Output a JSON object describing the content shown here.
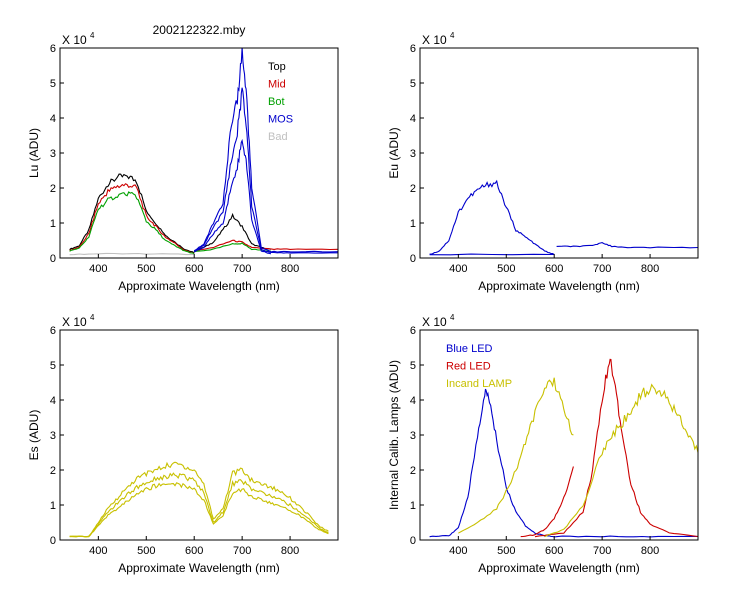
{
  "chart_data": [
    {
      "id": "lu",
      "type": "line",
      "title": "2002122322.mby",
      "xlabel": "Approximate Wavelength (nm)",
      "ylabel": "Lu (ADU)",
      "exponent_label": "X 10",
      "exponent_power": "4",
      "xlim": [
        320,
        900
      ],
      "ylim": [
        0,
        6
      ],
      "xticks": [
        400,
        500,
        600,
        700,
        800
      ],
      "yticks": [
        0,
        1,
        2,
        3,
        4,
        5,
        6
      ],
      "legend": [
        {
          "label": "Top",
          "color": "#000000"
        },
        {
          "label": "Mid",
          "color": "#cc0000"
        },
        {
          "label": "Bot",
          "color": "#00a000"
        },
        {
          "label": "MOS",
          "color": "#0000cc"
        },
        {
          "label": "Bad",
          "color": "#c0c0c0"
        }
      ],
      "series": [
        {
          "name": "Top",
          "color": "#000000",
          "x": [
            340,
            360,
            380,
            400,
            420,
            440,
            460,
            480,
            500,
            520,
            540,
            560,
            580,
            600
          ],
          "y": [
            0.25,
            0.35,
            0.8,
            1.7,
            2.1,
            2.3,
            2.35,
            2.2,
            1.35,
            1.0,
            0.65,
            0.45,
            0.25,
            0.15
          ]
        },
        {
          "name": "Top",
          "color": "#000000",
          "x": [
            600,
            620,
            640,
            660,
            680,
            700,
            720,
            740,
            760
          ],
          "y": [
            0.2,
            0.3,
            0.45,
            0.8,
            1.2,
            0.9,
            0.4,
            0.3,
            0.25
          ]
        },
        {
          "name": "Mid",
          "color": "#cc0000",
          "x": [
            340,
            360,
            380,
            400,
            420,
            440,
            460,
            480,
            500,
            520,
            540,
            560,
            580,
            600
          ],
          "y": [
            0.22,
            0.3,
            0.7,
            1.55,
            1.9,
            2.05,
            2.1,
            2.0,
            1.2,
            0.9,
            0.6,
            0.42,
            0.22,
            0.13
          ]
        },
        {
          "name": "Mid",
          "color": "#cc0000",
          "x": [
            600,
            640,
            680,
            700,
            720,
            760,
            800,
            900
          ],
          "y": [
            0.2,
            0.3,
            0.5,
            0.45,
            0.3,
            0.25,
            0.25,
            0.25
          ]
        },
        {
          "name": "Bot",
          "color": "#00a000",
          "x": [
            340,
            360,
            380,
            400,
            420,
            440,
            460,
            480,
            500,
            520,
            540,
            560,
            580,
            600
          ],
          "y": [
            0.2,
            0.28,
            0.6,
            1.4,
            1.65,
            1.8,
            1.85,
            1.75,
            1.05,
            0.8,
            0.5,
            0.35,
            0.2,
            0.12
          ]
        },
        {
          "name": "Bot",
          "color": "#00a000",
          "x": [
            600,
            640,
            680,
            700,
            720,
            760
          ],
          "y": [
            0.18,
            0.25,
            0.4,
            0.42,
            0.25,
            0.2
          ]
        },
        {
          "name": "MOS",
          "color": "#0000cc",
          "x": [
            600,
            620,
            640,
            660,
            675,
            690,
            700,
            710,
            720,
            740,
            760,
            800,
            900
          ],
          "y": [
            0.2,
            0.4,
            1.0,
            1.6,
            3.5,
            4.5,
            5.9,
            4.5,
            2.0,
            0.3,
            0.18,
            0.18,
            0.18
          ]
        },
        {
          "name": "MOS",
          "color": "#0000cc",
          "x": [
            600,
            620,
            640,
            660,
            675,
            690,
            700,
            710,
            720,
            740,
            760,
            800,
            900
          ],
          "y": [
            0.2,
            0.35,
            0.9,
            1.3,
            2.6,
            3.6,
            4.8,
            3.6,
            1.5,
            0.25,
            0.15,
            0.15,
            0.15
          ]
        },
        {
          "name": "MOS",
          "color": "#0000cc",
          "x": [
            600,
            620,
            640,
            660,
            675,
            690,
            700,
            710,
            720,
            740,
            760
          ],
          "y": [
            0.18,
            0.3,
            0.7,
            1.0,
            1.9,
            2.6,
            3.4,
            2.6,
            1.1,
            0.2,
            0.12
          ]
        },
        {
          "name": "Bad",
          "color": "#c0c0c0",
          "x": [
            340,
            400,
            500,
            600
          ],
          "y": [
            0.1,
            0.12,
            0.12,
            0.1
          ]
        }
      ]
    },
    {
      "id": "eu",
      "type": "line",
      "xlabel": "Approximate Wavelength (nm)",
      "ylabel": "Eu  (ADU)",
      "exponent_label": "X 10",
      "exponent_power": "4",
      "xlim": [
        320,
        900
      ],
      "ylim": [
        0,
        6
      ],
      "xticks": [
        400,
        500,
        600,
        700,
        800
      ],
      "yticks": [
        0,
        1,
        2,
        3,
        4,
        5,
        6
      ],
      "series": [
        {
          "name": "Eu",
          "color": "#0000cc",
          "x": [
            340,
            360,
            380,
            400,
            420,
            440,
            460,
            480,
            500,
            520,
            540,
            560,
            580,
            600
          ],
          "y": [
            0.1,
            0.2,
            0.5,
            1.3,
            1.7,
            1.95,
            2.1,
            2.15,
            1.45,
            0.8,
            0.6,
            0.4,
            0.2,
            0.1
          ]
        },
        {
          "name": "Eu",
          "color": "#0000cc",
          "x": [
            605,
            640,
            680,
            700,
            720,
            760,
            800,
            900
          ],
          "y": [
            0.33,
            0.33,
            0.35,
            0.45,
            0.33,
            0.3,
            0.3,
            0.3
          ]
        },
        {
          "name": "Eu",
          "color": "#0000cc",
          "x": [
            340,
            600
          ],
          "y": [
            0.1,
            0.1
          ]
        }
      ]
    },
    {
      "id": "es",
      "type": "line",
      "xlabel": "Approximate Wavelength (nm)",
      "ylabel": "Es  (ADU)",
      "exponent_label": "X 10",
      "exponent_power": "4",
      "xlim": [
        320,
        900
      ],
      "ylim": [
        0,
        6
      ],
      "xticks": [
        400,
        500,
        600,
        700,
        800
      ],
      "yticks": [
        0,
        1,
        2,
        3,
        4,
        5,
        6
      ],
      "series": [
        {
          "name": "Es",
          "color": "#c8c000",
          "x": [
            340,
            380,
            400,
            420,
            440,
            460,
            480,
            500,
            520,
            540,
            560,
            580,
            600,
            620,
            640,
            660,
            680,
            700,
            720,
            740,
            760,
            780,
            800,
            820,
            840,
            860,
            880
          ],
          "y": [
            0.1,
            0.1,
            0.5,
            0.9,
            1.2,
            1.5,
            1.75,
            1.9,
            2.0,
            2.1,
            2.2,
            2.1,
            2.0,
            1.6,
            0.6,
            0.9,
            1.9,
            2.0,
            1.7,
            1.6,
            1.5,
            1.4,
            1.2,
            0.95,
            0.7,
            0.4,
            0.25
          ]
        },
        {
          "name": "Es",
          "color": "#c8c000",
          "x": [
            340,
            380,
            400,
            420,
            440,
            460,
            480,
            500,
            520,
            540,
            560,
            580,
            600,
            620,
            640,
            660,
            680,
            700,
            720,
            740,
            760,
            780,
            800,
            820,
            840,
            860,
            880
          ],
          "y": [
            0.1,
            0.1,
            0.45,
            0.8,
            1.05,
            1.3,
            1.5,
            1.65,
            1.75,
            1.8,
            1.85,
            1.8,
            1.7,
            1.35,
            0.5,
            0.8,
            1.6,
            1.7,
            1.45,
            1.35,
            1.25,
            1.15,
            1.0,
            0.8,
            0.6,
            0.35,
            0.2
          ]
        },
        {
          "name": "Es",
          "color": "#c8c000",
          "x": [
            340,
            380,
            400,
            420,
            440,
            460,
            480,
            500,
            520,
            540,
            560,
            580,
            600,
            620,
            640,
            660,
            680,
            700,
            720,
            740,
            760,
            780,
            800,
            820,
            840,
            860,
            880
          ],
          "y": [
            0.1,
            0.1,
            0.4,
            0.7,
            0.9,
            1.1,
            1.3,
            1.45,
            1.55,
            1.6,
            1.6,
            1.55,
            1.45,
            1.15,
            0.45,
            0.7,
            1.35,
            1.45,
            1.25,
            1.15,
            1.05,
            0.95,
            0.85,
            0.7,
            0.5,
            0.3,
            0.18
          ]
        }
      ]
    },
    {
      "id": "lamps",
      "type": "line",
      "xlabel": "Approximate Wavelength (nm)",
      "ylabel": "Internal Calib. Lamps (ADU)",
      "exponent_label": "X 10",
      "exponent_power": "4",
      "xlim": [
        320,
        900
      ],
      "ylim": [
        0,
        6
      ],
      "xticks": [
        400,
        500,
        600,
        700,
        800
      ],
      "yticks": [
        0,
        1,
        2,
        3,
        4,
        5,
        6
      ],
      "legend": [
        {
          "label": "Blue LED",
          "color": "#0000cc"
        },
        {
          "label": "Red LED",
          "color": "#cc0000"
        },
        {
          "label": "Incand LAMP",
          "color": "#c8c000"
        }
      ],
      "series": [
        {
          "name": "Blue LED",
          "color": "#0000cc",
          "x": [
            340,
            380,
            400,
            420,
            440,
            455,
            465,
            480,
            500,
            520,
            540,
            560,
            580,
            600,
            700,
            800,
            900
          ],
          "y": [
            0.1,
            0.12,
            0.35,
            1.2,
            3.0,
            4.2,
            4.0,
            2.8,
            1.5,
            0.8,
            0.4,
            0.2,
            0.12,
            0.1,
            0.1,
            0.1,
            0.1
          ]
        },
        {
          "name": "Red LED",
          "color": "#cc0000",
          "x": [
            530,
            560,
            580,
            600,
            620,
            640
          ],
          "y": [
            0.1,
            0.15,
            0.3,
            0.6,
            1.2,
            2.1
          ]
        },
        {
          "name": "Red LED",
          "color": "#cc0000",
          "x": [
            560,
            620,
            660,
            680,
            700,
            715,
            725,
            740,
            760,
            780,
            800,
            840,
            900
          ],
          "y": [
            0.1,
            0.2,
            0.8,
            2.0,
            4.0,
            5.1,
            4.7,
            3.2,
            1.6,
            0.8,
            0.45,
            0.2,
            0.1
          ]
        },
        {
          "name": "Incand LAMP",
          "color": "#c8c000",
          "x": [
            400,
            440,
            480,
            500,
            520,
            540,
            560,
            580,
            600,
            620,
            640
          ],
          "y": [
            0.2,
            0.5,
            0.9,
            1.4,
            2.0,
            2.8,
            3.6,
            4.3,
            4.55,
            3.8,
            3.0
          ]
        },
        {
          "name": "Incand LAMP",
          "color": "#c8c000",
          "x": [
            580,
            620,
            660,
            700,
            720,
            740,
            760,
            780,
            800,
            820,
            840,
            860,
            880,
            900
          ],
          "y": [
            0.1,
            0.3,
            1.0,
            2.5,
            3.0,
            3.3,
            3.7,
            4.1,
            4.35,
            4.3,
            3.9,
            3.5,
            3.0,
            2.5
          ]
        }
      ]
    }
  ]
}
